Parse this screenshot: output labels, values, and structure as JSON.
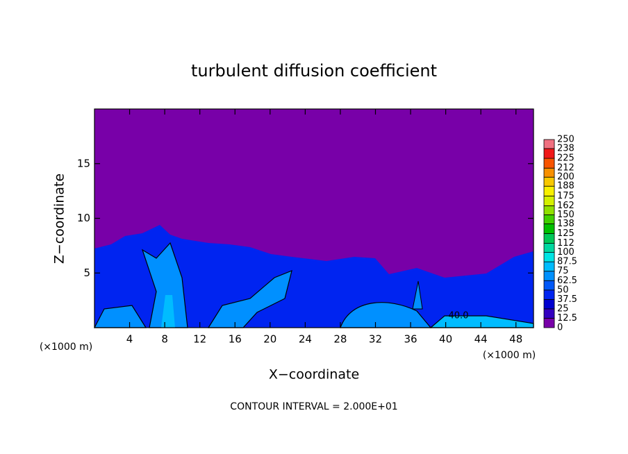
{
  "chart_data": {
    "type": "contour",
    "title": "turbulent diffusion coefficient",
    "xlabel": "X−coordinate",
    "ylabel": "Z−coordinate",
    "x_unit": "(×1000 m)",
    "footer": "CONTOUR INTERVAL = 2.000E+01",
    "contour_label": "40.0",
    "xlim": [
      0,
      50
    ],
    "xticks": [
      4,
      8,
      12,
      16,
      20,
      24,
      28,
      32,
      36,
      40,
      44,
      48
    ],
    "ylim": [
      0,
      20
    ],
    "yticks": [
      5,
      10,
      15
    ],
    "colorbar": {
      "clim": [
        0,
        250
      ],
      "levels": [
        0,
        12.5,
        25,
        37.5,
        50,
        62.5,
        75,
        87.5,
        100,
        112,
        125,
        138,
        150,
        162,
        175,
        188,
        200,
        212,
        225,
        238,
        250
      ],
      "colors": [
        "#7800a8",
        "#3400c0",
        "#0000d0",
        "#0024f0",
        "#0058f8",
        "#0090ff",
        "#00bcff",
        "#00e4e4",
        "#00d8a0",
        "#00c858",
        "#00c000",
        "#40d000",
        "#90e000",
        "#d4f000",
        "#f8f000",
        "#f8c800",
        "#f89000",
        "#f85400",
        "#f01818",
        "#f07080"
      ]
    }
  }
}
